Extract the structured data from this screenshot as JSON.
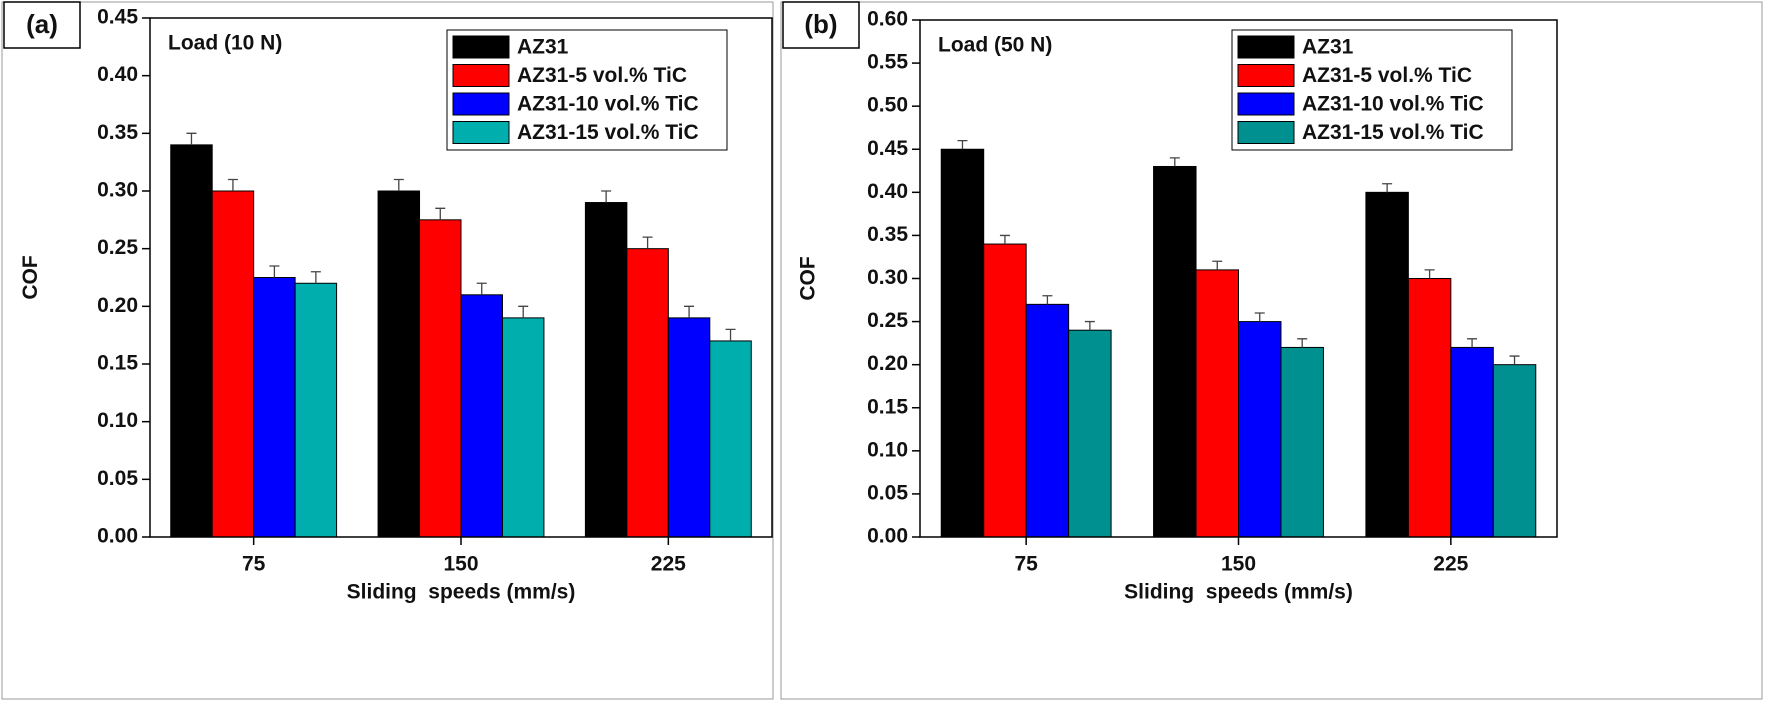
{
  "chart_data": [
    {
      "type": "bar",
      "panel_label": "(a)",
      "annotation": "Load (10 N)",
      "x_label": "Sliding  speeds (mm/s)",
      "y_label": "COF",
      "categories": [
        "75",
        "150",
        "225"
      ],
      "series": [
        {
          "name": "AZ31",
          "color": "#000000",
          "values": [
            0.34,
            0.3,
            0.29
          ],
          "errors": [
            0.01,
            0.01,
            0.01
          ]
        },
        {
          "name": "AZ31-5 vol.% TiC",
          "color": "#ff0000",
          "values": [
            0.3,
            0.275,
            0.25
          ],
          "errors": [
            0.01,
            0.01,
            0.01
          ]
        },
        {
          "name": "AZ31-10 vol.% TiC",
          "color": "#0000ff",
          "values": [
            0.225,
            0.21,
            0.19
          ],
          "errors": [
            0.01,
            0.01,
            0.01
          ]
        },
        {
          "name": "AZ31-15 vol.% TiC",
          "color": "#00aeae",
          "values": [
            0.22,
            0.19,
            0.17
          ],
          "errors": [
            0.01,
            0.01,
            0.01
          ]
        }
      ],
      "ylim": [
        0,
        0.45
      ],
      "yticks": [
        {
          "value": 0,
          "label": "0.00"
        },
        {
          "value": 0.05,
          "label": "0.05"
        },
        {
          "value": 0.1,
          "label": "0.10"
        },
        {
          "value": 0.15,
          "label": "0.15"
        },
        {
          "value": 0.2,
          "label": "0.20"
        },
        {
          "value": 0.25,
          "label": "0.25"
        },
        {
          "value": 0.3,
          "label": "0.30"
        },
        {
          "value": 0.35,
          "label": "0.35"
        },
        {
          "value": 0.4,
          "label": "0.40"
        },
        {
          "value": 0.45,
          "label": "0.45"
        }
      ],
      "legend": "upper right"
    },
    {
      "type": "bar",
      "panel_label": "(b)",
      "annotation": "Load (50 N)",
      "x_label": "Sliding  speeds (mm/s)",
      "y_label": "COF",
      "categories": [
        "75",
        "150",
        "225"
      ],
      "series": [
        {
          "name": "AZ31",
          "color": "#000000",
          "values": [
            0.45,
            0.43,
            0.4
          ],
          "errors": [
            0.01,
            0.01,
            0.01
          ]
        },
        {
          "name": "AZ31-5 vol.% TiC",
          "color": "#ff0000",
          "values": [
            0.34,
            0.31,
            0.3
          ],
          "errors": [
            0.01,
            0.01,
            0.01
          ]
        },
        {
          "name": "AZ31-10 vol.% TiC",
          "color": "#0000ff",
          "values": [
            0.27,
            0.25,
            0.22
          ],
          "errors": [
            0.01,
            0.01,
            0.01
          ]
        },
        {
          "name": "AZ31-15 vol.% TiC",
          "color": "#009090",
          "values": [
            0.24,
            0.22,
            0.2
          ],
          "errors": [
            0.01,
            0.01,
            0.01
          ]
        }
      ],
      "ylim": [
        0,
        0.6
      ],
      "yticks": [
        {
          "value": 0,
          "label": "0.00"
        },
        {
          "value": 0.05,
          "label": "0.05"
        },
        {
          "value": 0.1,
          "label": "0.10"
        },
        {
          "value": 0.15,
          "label": "0.15"
        },
        {
          "value": 0.2,
          "label": "0.20"
        },
        {
          "value": 0.25,
          "label": "0.25"
        },
        {
          "value": 0.3,
          "label": "0.30"
        },
        {
          "value": 0.35,
          "label": "0.35"
        },
        {
          "value": 0.4,
          "label": "0.40"
        },
        {
          "value": 0.45,
          "label": "0.45"
        },
        {
          "value": 0.5,
          "label": "0.50"
        },
        {
          "value": 0.55,
          "label": "0.55"
        },
        {
          "value": 0.6,
          "label": "0.60"
        }
      ],
      "legend": "upper right"
    }
  ]
}
